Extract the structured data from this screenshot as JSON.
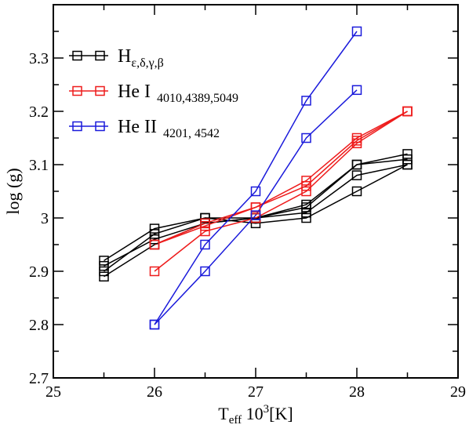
{
  "chart_data": {
    "type": "line",
    "xlabel": {
      "main": "T",
      "sub": "eff",
      "mid": " 10",
      "sup": "3",
      "tail": "[K]"
    },
    "ylabel": "log (g)",
    "xlim": [
      25,
      29
    ],
    "ylim": [
      2.7,
      3.4
    ],
    "xticks": [
      25,
      26,
      27,
      28,
      29
    ],
    "xtick_labels": [
      "25",
      "26",
      "27",
      "28",
      "29"
    ],
    "yticks": [
      2.7,
      2.8,
      2.9,
      3.0,
      3.1,
      3.2,
      3.3
    ],
    "ytick_labels": [
      "2.7",
      "2.8",
      "2.9",
      "3",
      "3.1",
      "3.2",
      "3.3"
    ],
    "grid": false,
    "legend_position": "top-left",
    "marker": "open-square",
    "groups": [
      {
        "label_main": "H",
        "label_sub": "ε,δ,γ,β",
        "color": "#000000",
        "series": [
          {
            "x": [
              25.5,
              26,
              26.5,
              27,
              27.5,
              28,
              28.5
            ],
            "y": [
              2.92,
              2.98,
              3.0,
              2.99,
              3.0,
              3.05,
              3.1
            ]
          },
          {
            "x": [
              25.5,
              26,
              26.5,
              27,
              27.5,
              28,
              28.5
            ],
            "y": [
              2.91,
              2.96,
              2.99,
              3.0,
              3.01,
              3.08,
              3.1
            ]
          },
          {
            "x": [
              25.5,
              26,
              26.5,
              27,
              27.5,
              28,
              28.5
            ],
            "y": [
              2.89,
              2.95,
              2.99,
              3.0,
              3.02,
              3.1,
              3.11
            ]
          },
          {
            "x": [
              25.5,
              26,
              26.5,
              27,
              27.5,
              28,
              28.5
            ],
            "y": [
              2.9,
              2.97,
              3.0,
              3.0,
              3.025,
              3.1,
              3.12
            ]
          }
        ]
      },
      {
        "label_main": "He I",
        "label_sub": "4010,4389,5049",
        "color": "#ee1c1c",
        "series": [
          {
            "x": [
              26,
              26.5,
              27,
              27.5,
              28,
              28.5
            ],
            "y": [
              2.9,
              2.975,
              3.0,
              3.05,
              3.14,
              3.2
            ]
          },
          {
            "x": [
              26,
              26.5,
              27,
              27.5,
              28,
              28.5
            ],
            "y": [
              2.95,
              2.985,
              3.02,
              3.06,
              3.145,
              3.2
            ]
          },
          {
            "x": [
              26,
              26.5,
              27,
              27.5,
              28,
              28.5
            ],
            "y": [
              2.95,
              2.99,
              3.02,
              3.07,
              3.15,
              3.2
            ]
          }
        ]
      },
      {
        "label_main": "He II",
        "label_sub": "4201, 4542",
        "color": "#1a1adb",
        "series": [
          {
            "x": [
              26,
              26.5,
              27,
              27.5,
              28
            ],
            "y": [
              2.8,
              2.9,
              3.005,
              3.15,
              3.24
            ]
          },
          {
            "x": [
              26,
              26.5,
              27,
              27.5,
              28
            ],
            "y": [
              2.8,
              2.95,
              3.05,
              3.22,
              3.35
            ]
          }
        ]
      }
    ]
  }
}
